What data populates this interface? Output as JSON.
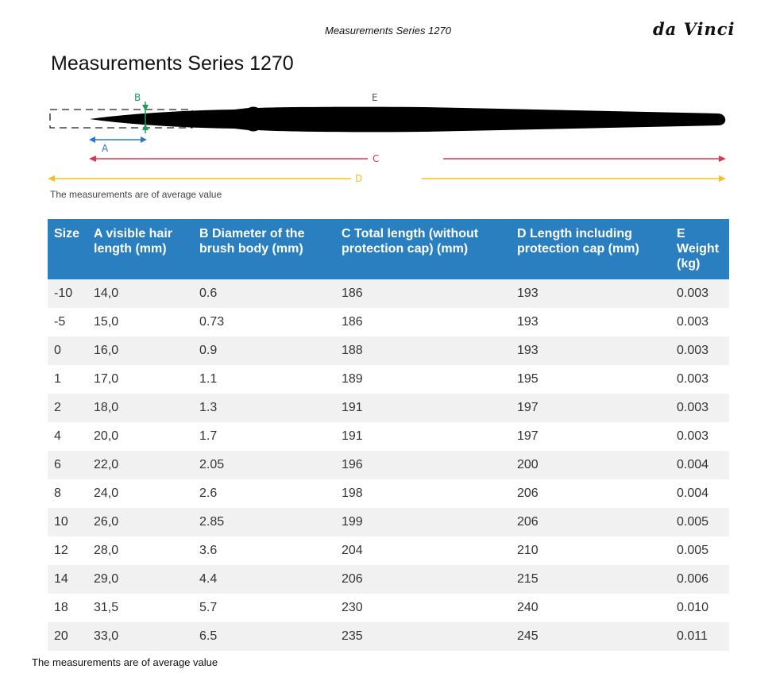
{
  "header": {
    "running_title": "Measurements Series 1270",
    "brand": "da Vinci"
  },
  "page_title": "Measurements Series 1270",
  "diagram": {
    "labels": {
      "a": "A",
      "b": "B",
      "c": "C",
      "d": "D",
      "e": "E"
    },
    "colors": {
      "a": "#2a76d2",
      "b": "#1e9e58",
      "c": "#d9394f",
      "d": "#f5c02b",
      "e": "#555555",
      "brush": "#000000"
    },
    "note": "The measurements are of average value"
  },
  "table": {
    "headers": [
      "Size",
      "A visible hair length (mm)",
      "B Diameter of the brush body (mm)",
      "C Total length (without protection cap) (mm)",
      "D Length including protection cap (mm)",
      "E Weight (kg)"
    ],
    "header_color": "#2a7fc1",
    "rows": [
      [
        "-10",
        "14,0",
        "0.6",
        "186",
        "193",
        "0.003"
      ],
      [
        "-5",
        "15,0",
        "0.73",
        "186",
        "193",
        "0.003"
      ],
      [
        "0",
        "16,0",
        "0.9",
        "188",
        "193",
        "0.003"
      ],
      [
        "1",
        "17,0",
        "1.1",
        "189",
        "195",
        "0.003"
      ],
      [
        "2",
        "18,0",
        "1.3",
        "191",
        "197",
        "0.003"
      ],
      [
        "4",
        "20,0",
        "1.7",
        "191",
        "197",
        "0.003"
      ],
      [
        "6",
        "22,0",
        "2.05",
        "196",
        "200",
        "0.004"
      ],
      [
        "8",
        "24,0",
        "2.6",
        "198",
        "206",
        "0.004"
      ],
      [
        "10",
        "26,0",
        "2.85",
        "199",
        "206",
        "0.005"
      ],
      [
        "12",
        "28,0",
        "3.6",
        "204",
        "210",
        "0.005"
      ],
      [
        "14",
        "29,0",
        "4.4",
        "206",
        "215",
        "0.006"
      ],
      [
        "18",
        "31,5",
        "5.7",
        "230",
        "240",
        "0.010"
      ],
      [
        "20",
        "33,0",
        "6.5",
        "235",
        "245",
        "0.011"
      ]
    ]
  },
  "footer_note": "The measurements are of average value"
}
